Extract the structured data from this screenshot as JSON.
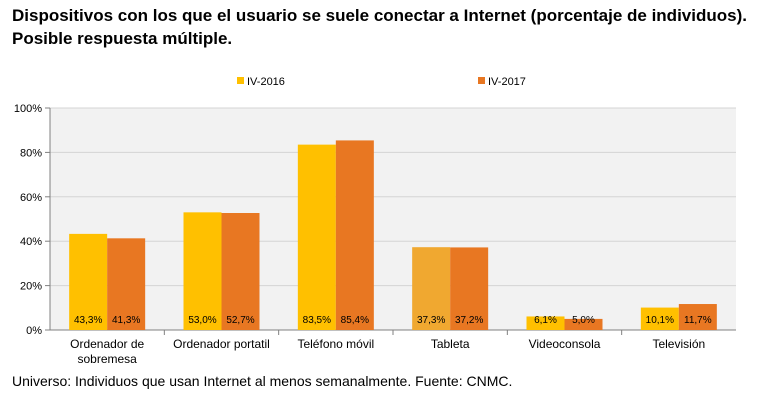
{
  "title": "Dispositivos con los que el usuario se suele conectar a Internet (porcentaje de individuos). Posible respuesta múltiple.",
  "footnote": "Universo: Individuos que usan Internet al menos semanalmente. Fuente: CNMC.",
  "chart_data": {
    "type": "bar",
    "title": "",
    "xlabel": "",
    "ylabel": "",
    "ylim": [
      0,
      100
    ],
    "yticks": [
      0,
      20,
      40,
      60,
      80,
      100
    ],
    "ytick_labels": [
      "0%",
      "20%",
      "40%",
      "60%",
      "80%",
      "100%"
    ],
    "categories": [
      "Ordenador de sobremesa",
      "Ordenador portatil",
      "Teléfono móvil",
      "Tableta",
      "Videoconsola",
      "Televisión"
    ],
    "category_lines": [
      [
        "Ordenador de",
        "sobremesa"
      ],
      [
        "Ordenador portatil"
      ],
      [
        "Teléfono móvil"
      ],
      [
        "Tableta"
      ],
      [
        "Videoconsola"
      ],
      [
        "Televisión"
      ]
    ],
    "series": [
      {
        "name": "IV-2016",
        "color": "#FFC000",
        "values": [
          43.3,
          53.0,
          83.5,
          37.3,
          6.1,
          10.1
        ],
        "labels": [
          "43,3%",
          "53,0%",
          "83,5%",
          "37,3%",
          "6,1%",
          "10,1%"
        ]
      },
      {
        "name": "IV-2017",
        "color": "#E87722",
        "values": [
          41.3,
          52.7,
          85.4,
          37.2,
          5.0,
          11.7
        ],
        "labels": [
          "41,3%",
          "52,7%",
          "85,4%",
          "37,2%",
          "5,0%",
          "11,7%"
        ]
      }
    ],
    "highlight": {
      "series": 0,
      "category": 3,
      "color": "#F0A830"
    },
    "grid": true,
    "legend_position": "top"
  }
}
